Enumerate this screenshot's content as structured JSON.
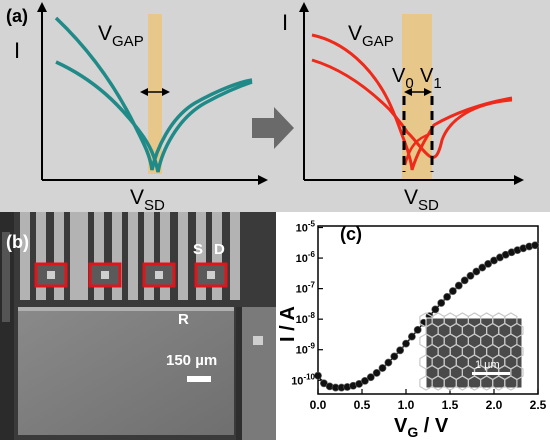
{
  "panel_a": {
    "label": "(a)",
    "left": {
      "ylabel": "I",
      "xlabel_main": "V",
      "xlabel_sub": "SD",
      "gap_main": "V",
      "gap_sub": "GAP"
    },
    "right": {
      "ylabel": "I",
      "xlabel_main": "V",
      "xlabel_sub": "SD",
      "gap_main": "V",
      "gap_sub": "GAP",
      "v0_main": "V",
      "v0_sub": "0",
      "v1_main": "V",
      "v1_sub": "1"
    },
    "colors": {
      "teal": "#1f8a87",
      "red": "#ee2a1a",
      "gap_band": "#e8c78a",
      "arrow": "#6a6a6a"
    }
  },
  "panel_b": {
    "label": "(b)",
    "s_label": "S",
    "d_label": "D",
    "r_label": "R",
    "scale_text": "150 µm",
    "highlight_color": "#e0151b"
  },
  "panel_c": {
    "label": "(c)",
    "ylabel": "I / A",
    "xlabel_main": "V",
    "xlabel_sub": "G",
    "xlabel_tail": " / V",
    "x_ticks": [
      "0.0",
      "0.5",
      "1.0",
      "1.5",
      "2.0",
      "2.5"
    ],
    "y_ticks": [
      {
        "base": "10",
        "exp": "-10"
      },
      {
        "base": "10",
        "exp": "-9"
      },
      {
        "base": "10",
        "exp": "-8"
      },
      {
        "base": "10",
        "exp": "-7"
      },
      {
        "base": "10",
        "exp": "-6"
      },
      {
        "base": "10",
        "exp": "-5"
      }
    ],
    "inset_scale": "1 µm"
  },
  "chart_data": {
    "type": "scatter",
    "xlabel": "V_G / V",
    "ylabel": "I / A",
    "log_y": true,
    "xlim": [
      0,
      2.5
    ],
    "ylim_log10": [
      -10.45,
      -4.95
    ],
    "series": [
      {
        "x": [
          0.0,
          0.067,
          0.133,
          0.2,
          0.267,
          0.333,
          0.4,
          0.467,
          0.533,
          0.6,
          0.667,
          0.733,
          0.8,
          0.867,
          0.933,
          1.0,
          1.067,
          1.133,
          1.2,
          1.267,
          1.333,
          1.4,
          1.467,
          1.533,
          1.6,
          1.667,
          1.733,
          1.8,
          1.867,
          1.933,
          2.0,
          2.067,
          2.133,
          2.2,
          2.267,
          2.333,
          2.4,
          2.467
        ],
        "y_log10": [
          -9.85,
          -10.1,
          -10.2,
          -10.24,
          -10.24,
          -10.22,
          -10.18,
          -10.12,
          -10.02,
          -9.9,
          -9.76,
          -9.6,
          -9.42,
          -9.22,
          -9.02,
          -8.8,
          -8.57,
          -8.35,
          -8.12,
          -7.9,
          -7.68,
          -7.47,
          -7.27,
          -7.08,
          -6.9,
          -6.73,
          -6.58,
          -6.44,
          -6.31,
          -6.19,
          -6.08,
          -5.98,
          -5.89,
          -5.81,
          -5.74,
          -5.68,
          -5.62,
          -5.58
        ]
      }
    ]
  }
}
